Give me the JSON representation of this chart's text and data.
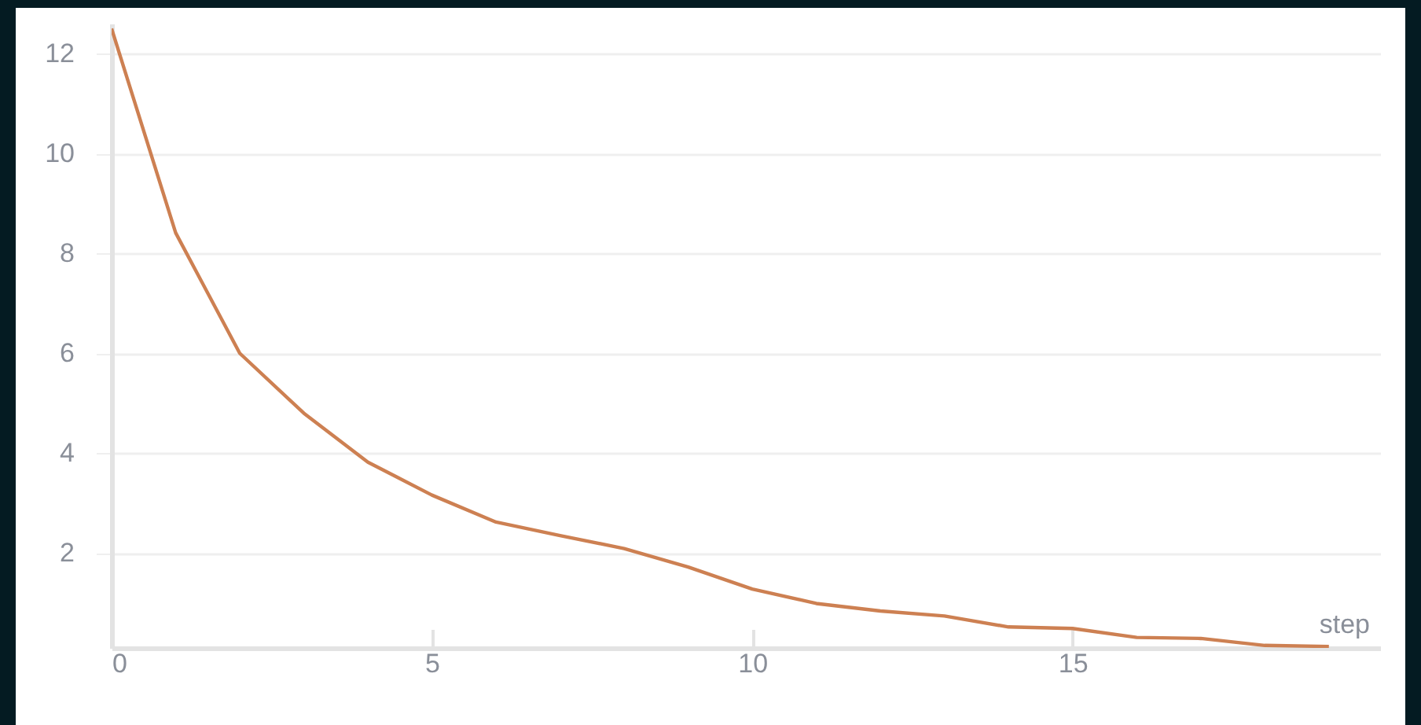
{
  "chart_data": {
    "type": "line",
    "xlabel": "step",
    "x": [
      0,
      1,
      2,
      3,
      4,
      5,
      6,
      7,
      8,
      9,
      10,
      11,
      12,
      13,
      14,
      15,
      16,
      17,
      18,
      19
    ],
    "series": [
      {
        "color": "#cd8052",
        "values": [
          12.5,
          8.41,
          6.0,
          4.8,
          3.82,
          3.16,
          2.62,
          2.35,
          2.09,
          1.72,
          1.28,
          0.99,
          0.84,
          0.74,
          0.52,
          0.49,
          0.31,
          0.29,
          0.15,
          0.13
        ]
      }
    ],
    "xlim": [
      0,
      19.8
    ],
    "xticks": [
      0,
      5,
      10,
      15
    ],
    "ylim": [
      0.1,
      12.6
    ],
    "yticks": [
      2,
      4,
      6,
      8,
      10,
      12
    ],
    "grid": "y",
    "marker": "none",
    "line_style": "solid"
  }
}
